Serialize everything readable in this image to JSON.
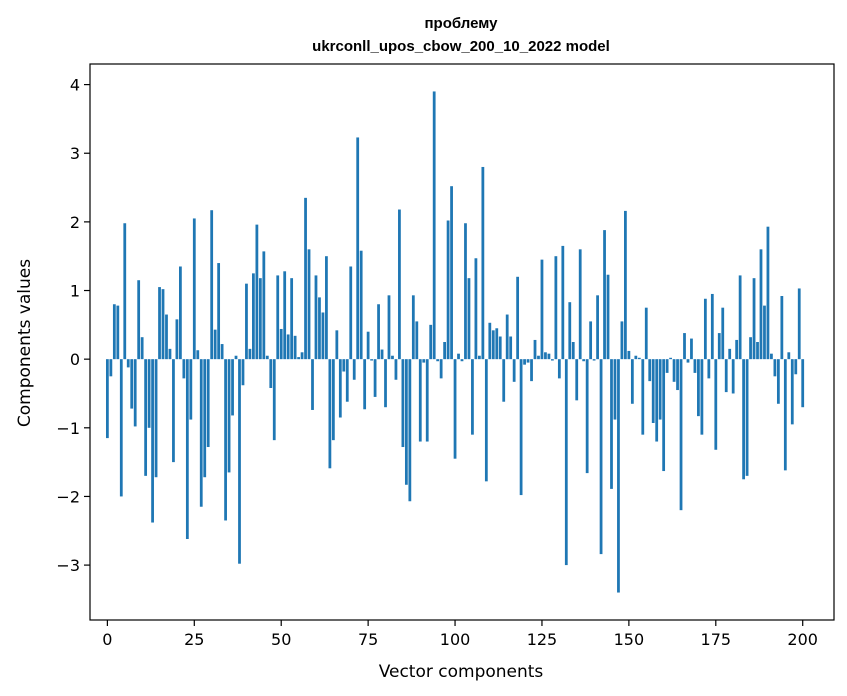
{
  "chart_data": {
    "type": "bar",
    "title_line1": "проблему",
    "title_line2": "ukrconll_upos_cbow_200_10_2022 model",
    "xlabel": "Vector components",
    "ylabel": "Components values",
    "xlim": [
      -5,
      209
    ],
    "ylim": [
      -3.8,
      4.3
    ],
    "xticks": [
      0,
      25,
      50,
      75,
      100,
      125,
      150,
      175,
      200
    ],
    "yticks": [
      -3,
      -2,
      -1,
      0,
      1,
      2,
      3,
      4
    ],
    "ytick_labels": [
      "−3",
      "−2",
      "−1",
      "0",
      "1",
      "2",
      "3",
      "4"
    ],
    "bar_color": "#1f77b4",
    "grid": false,
    "legend": "none",
    "values": [
      -1.15,
      -0.25,
      0.8,
      0.78,
      -2.0,
      1.98,
      -0.12,
      -0.72,
      -0.98,
      1.15,
      0.32,
      -1.7,
      -1.0,
      -2.38,
      -1.72,
      1.05,
      1.02,
      0.65,
      0.15,
      -1.5,
      0.58,
      1.35,
      -0.28,
      -2.62,
      -0.88,
      2.05,
      0.13,
      -2.15,
      -1.72,
      -1.28,
      2.17,
      0.43,
      1.4,
      0.22,
      -2.35,
      -1.65,
      -0.82,
      0.05,
      -2.98,
      -0.38,
      1.1,
      0.15,
      1.25,
      1.96,
      1.18,
      1.57,
      0.05,
      -0.42,
      -1.18,
      1.22,
      0.44,
      1.28,
      0.36,
      1.18,
      0.34,
      0.03,
      0.1,
      2.35,
      1.6,
      -0.74,
      1.22,
      0.9,
      0.68,
      1.5,
      -1.59,
      -1.18,
      0.42,
      -0.85,
      -0.18,
      -0.62,
      1.35,
      -0.3,
      3.23,
      1.58,
      -0.73,
      0.4,
      -0.02,
      -0.55,
      0.8,
      0.14,
      -0.7,
      0.93,
      0.05,
      -0.3,
      2.18,
      -1.28,
      -1.83,
      -2.07,
      0.93,
      0.55,
      -1.2,
      -0.05,
      -1.2,
      0.5,
      3.9,
      -0.03,
      -0.28,
      0.25,
      2.02,
      2.52,
      -1.45,
      0.08,
      -0.03,
      1.98,
      1.18,
      -1.1,
      1.47,
      0.05,
      2.8,
      -1.78,
      0.53,
      0.42,
      0.45,
      0.33,
      -0.62,
      0.65,
      0.33,
      -0.33,
      1.2,
      -1.98,
      -0.08,
      -0.05,
      -0.32,
      0.28,
      0.05,
      1.45,
      0.1,
      0.08,
      -0.02,
      1.5,
      -0.28,
      1.65,
      -3.0,
      0.83,
      0.25,
      -0.6,
      1.6,
      -0.03,
      -1.66,
      0.55,
      -0.02,
      0.93,
      -2.84,
      1.88,
      1.23,
      -1.89,
      -0.88,
      -3.4,
      0.55,
      2.16,
      0.12,
      -0.65,
      0.05,
      0.02,
      -1.1,
      0.75,
      -0.32,
      -0.93,
      -1.2,
      -0.88,
      -1.63,
      -0.2,
      0.02,
      -0.33,
      -0.45,
      -2.2,
      0.38,
      -0.05,
      0.3,
      -0.2,
      -0.83,
      -1.1,
      0.88,
      -0.28,
      0.95,
      -1.32,
      0.38,
      0.75,
      -0.48,
      0.15,
      -0.5,
      0.28,
      1.22,
      -1.75,
      -1.7,
      0.32,
      1.18,
      0.25,
      1.6,
      0.78,
      1.93,
      0.08,
      -0.25,
      -0.65,
      0.92,
      -1.62,
      0.1,
      -0.95,
      -0.22,
      1.03,
      -0.7
    ]
  }
}
